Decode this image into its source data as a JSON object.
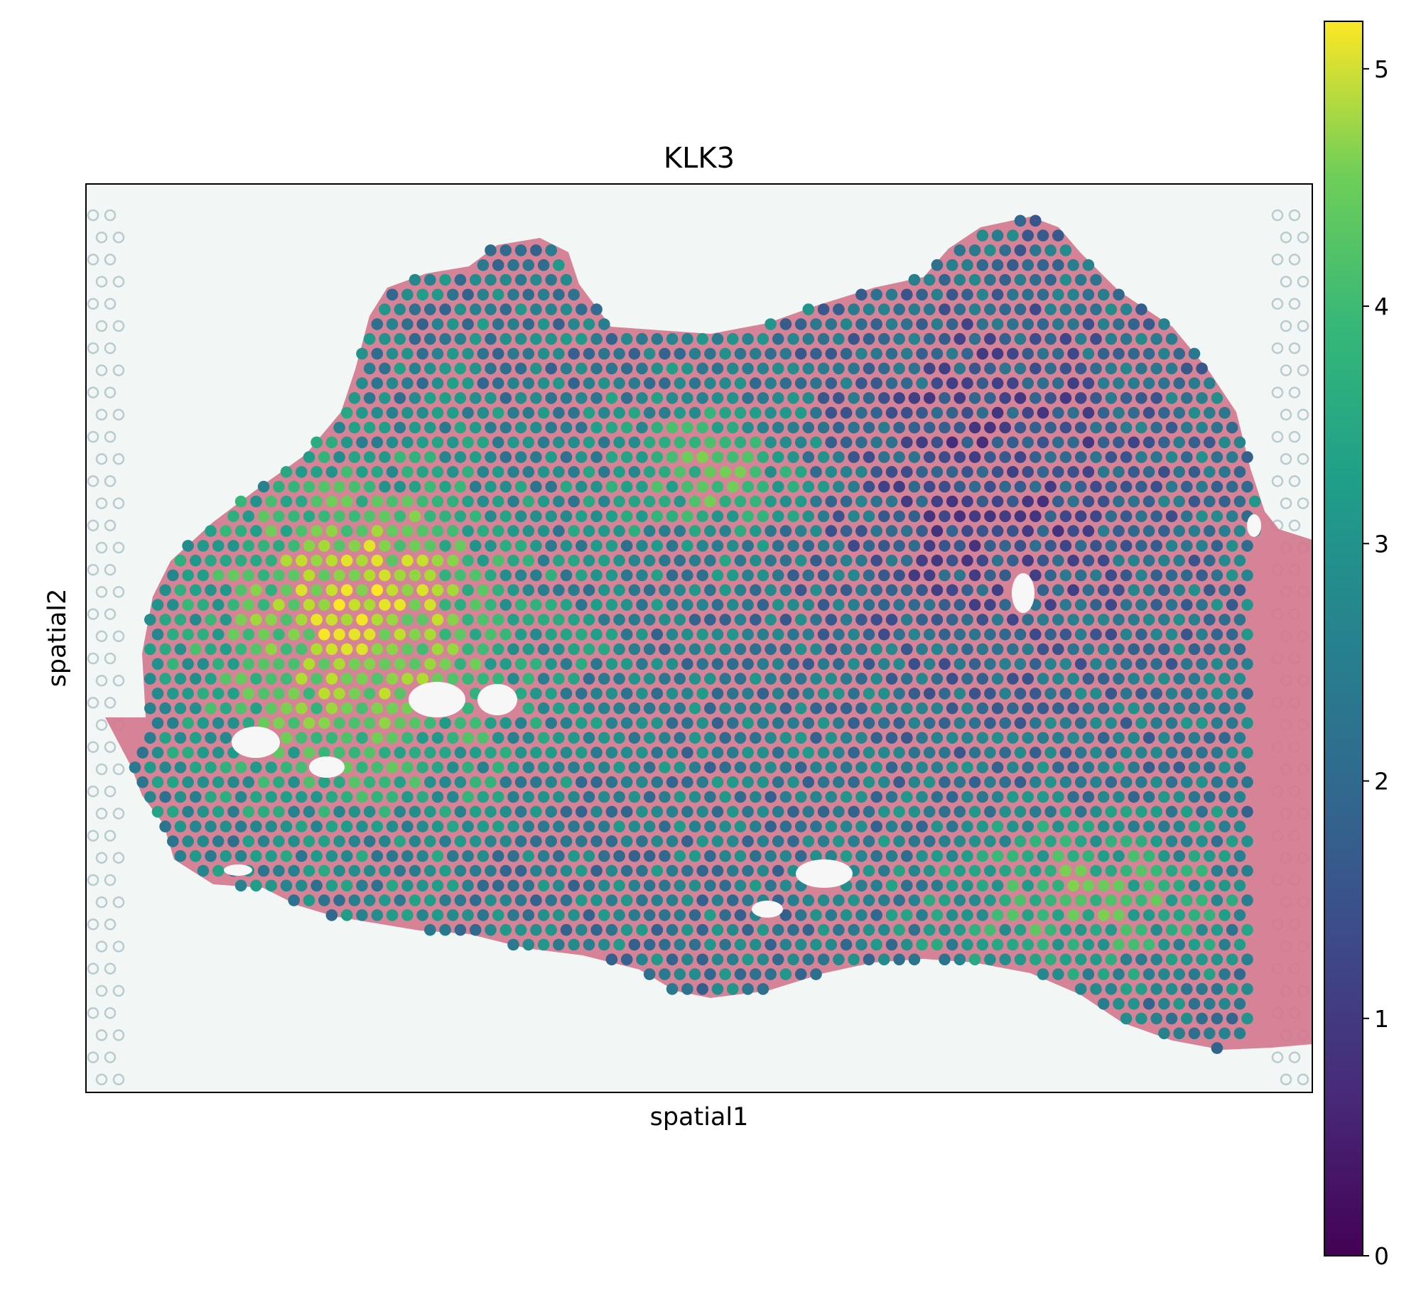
{
  "chart_data": {
    "type": "scatter",
    "title": "KLK3",
    "xlabel": "spatial1",
    "ylabel": "spatial2",
    "grid": false,
    "background": "H&E histology image of tissue section with Visium spot grid",
    "colorbar": {
      "colormap": "viridis",
      "range": [
        0,
        5.2
      ],
      "ticks": [
        0,
        1,
        2,
        3,
        4,
        5
      ],
      "tick_labels": [
        "0",
        "1",
        "2",
        "3",
        "4",
        "5"
      ],
      "placement": "right"
    },
    "regions": [
      {
        "region": "left lobe glandular area",
        "approx_value": 4.3
      },
      {
        "region": "far-left peak spots",
        "approx_value": 5.0
      },
      {
        "region": "upper-middle cluster",
        "approx_value": 3.8
      },
      {
        "region": "central tissue",
        "approx_value": 2.2
      },
      {
        "region": "right upper area",
        "approx_value": 1.2
      },
      {
        "region": "lower-right cluster",
        "approx_value": 3.7
      },
      {
        "region": "tissue border",
        "approx_value": 2.5
      }
    ]
  },
  "colors": {
    "tissue": "#d4788f",
    "slide": "#f2f6f4",
    "empty_spot": "#b8cbcf",
    "frame": "#000000"
  }
}
